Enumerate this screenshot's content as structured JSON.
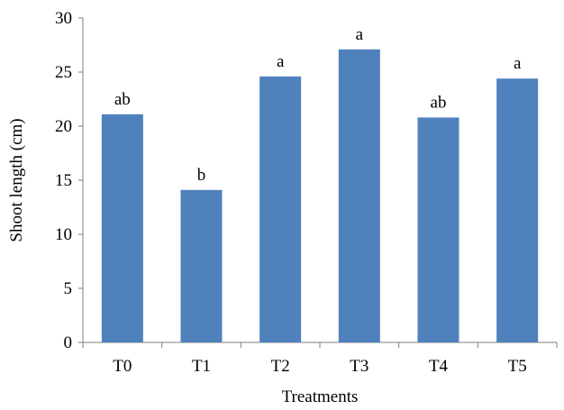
{
  "chart_data": {
    "type": "bar",
    "title": "",
    "xlabel": "Treatments",
    "ylabel": "Shoot length (cm)",
    "categories": [
      "T0",
      "T1",
      "T2",
      "T3",
      "T4",
      "T5"
    ],
    "values": [
      21.1,
      14.1,
      24.6,
      27.1,
      20.8,
      24.4
    ],
    "data_labels": [
      "ab",
      "b",
      "a",
      "a",
      "ab",
      "a"
    ],
    "ylim": [
      0,
      30
    ],
    "yticks": [
      0,
      5,
      10,
      15,
      20,
      25,
      30
    ],
    "ytick_labels": [
      "0",
      "5",
      "10",
      "15",
      "20",
      "25",
      "30"
    ],
    "bar_color": "#4f81bd",
    "grid": false,
    "legend": "none"
  }
}
